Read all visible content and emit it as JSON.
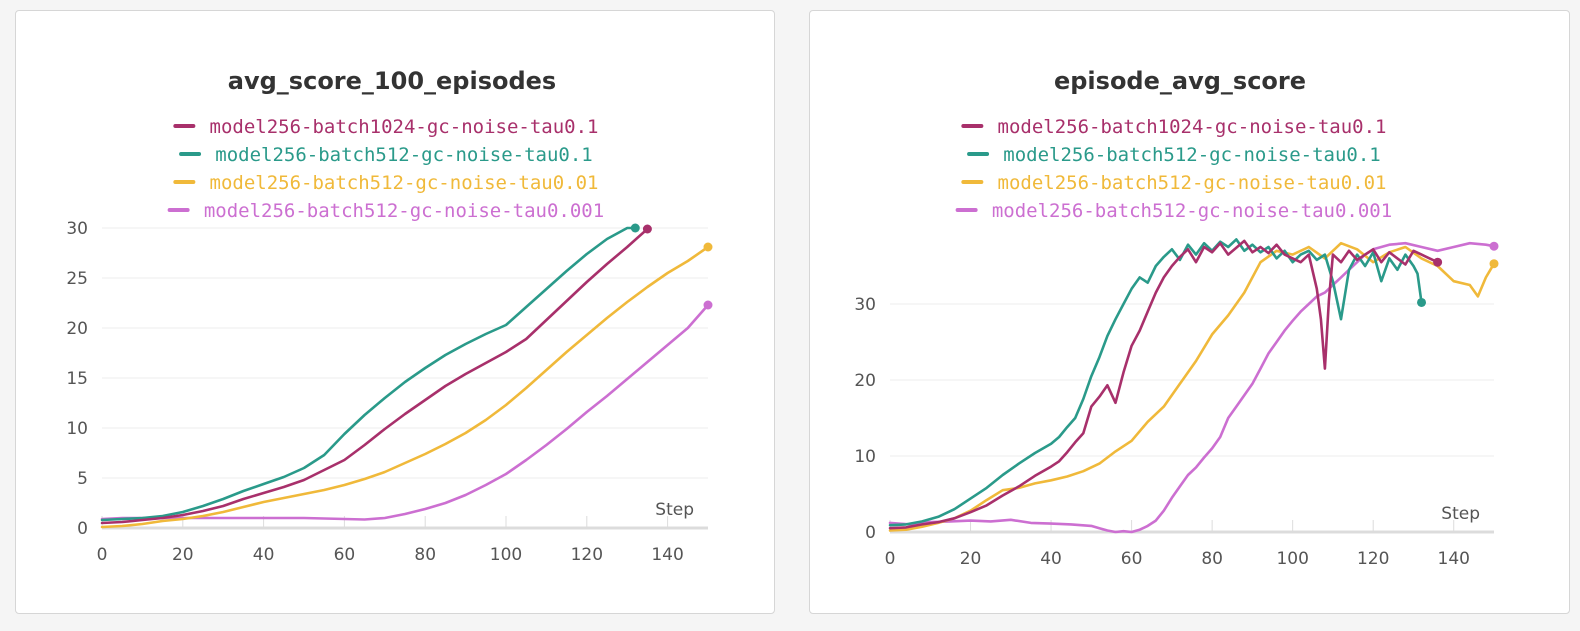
{
  "chart_data": [
    {
      "type": "line",
      "title": "avg_score_100_episodes",
      "xlabel": "Step",
      "ylabel": "",
      "xlim": [
        0,
        150
      ],
      "ylim": [
        0,
        30
      ],
      "x_ticks": [
        0,
        20,
        40,
        60,
        80,
        100,
        120,
        140
      ],
      "y_ticks": [
        0,
        5,
        10,
        15,
        20,
        25,
        30
      ],
      "grid": true,
      "legend_position": "top-center",
      "series": [
        {
          "name": "model256-batch1024-gc-noise-tau0.1",
          "color": "#a8306b",
          "x": [
            0,
            5,
            10,
            15,
            20,
            25,
            30,
            35,
            40,
            45,
            50,
            55,
            60,
            65,
            70,
            75,
            80,
            85,
            90,
            95,
            100,
            105,
            110,
            115,
            120,
            125,
            130,
            135
          ],
          "y": [
            0.5,
            0.6,
            0.8,
            1.0,
            1.3,
            1.7,
            2.2,
            2.9,
            3.5,
            4.1,
            4.8,
            5.8,
            6.8,
            8.3,
            9.9,
            11.4,
            12.8,
            14.2,
            15.4,
            16.5,
            17.6,
            18.9,
            20.8,
            22.7,
            24.6,
            26.4,
            28.1,
            29.9
          ],
          "end_marker": true
        },
        {
          "name": "model256-batch512-gc-noise-tau0.1",
          "color": "#2a9a8a",
          "x": [
            0,
            5,
            10,
            15,
            20,
            25,
            30,
            35,
            40,
            45,
            50,
            55,
            60,
            65,
            70,
            75,
            80,
            85,
            90,
            95,
            100,
            105,
            110,
            115,
            120,
            125,
            130,
            132
          ],
          "y": [
            0.8,
            0.9,
            1.0,
            1.2,
            1.6,
            2.2,
            2.9,
            3.7,
            4.4,
            5.1,
            6.0,
            7.3,
            9.4,
            11.3,
            13.0,
            14.6,
            16.0,
            17.3,
            18.4,
            19.4,
            20.3,
            22.1,
            23.9,
            25.7,
            27.4,
            28.9,
            30.0,
            30.0
          ],
          "end_marker": true
        },
        {
          "name": "model256-batch512-gc-noise-tau0.01",
          "color": "#f0b93a",
          "x": [
            0,
            5,
            10,
            15,
            20,
            25,
            30,
            35,
            40,
            45,
            50,
            55,
            60,
            65,
            70,
            75,
            80,
            85,
            90,
            95,
            100,
            105,
            110,
            115,
            120,
            125,
            130,
            135,
            140,
            145,
            150
          ],
          "y": [
            0.1,
            0.2,
            0.4,
            0.7,
            0.9,
            1.2,
            1.6,
            2.1,
            2.6,
            3.0,
            3.4,
            3.8,
            4.3,
            4.9,
            5.6,
            6.5,
            7.4,
            8.4,
            9.5,
            10.8,
            12.3,
            14.0,
            15.8,
            17.6,
            19.3,
            21.0,
            22.6,
            24.1,
            25.5,
            26.7,
            28.1
          ],
          "end_marker": true
        },
        {
          "name": "model256-batch512-gc-noise-tau0.001",
          "color": "#cc6fd1",
          "x": [
            0,
            5,
            10,
            15,
            20,
            25,
            30,
            35,
            40,
            45,
            50,
            55,
            60,
            65,
            70,
            75,
            80,
            85,
            90,
            95,
            100,
            105,
            110,
            115,
            120,
            125,
            130,
            135,
            140,
            145,
            150
          ],
          "y": [
            0.9,
            1.0,
            1.0,
            1.0,
            1.0,
            1.0,
            1.0,
            1.0,
            1.0,
            1.0,
            1.0,
            0.95,
            0.9,
            0.85,
            1.0,
            1.4,
            1.9,
            2.5,
            3.3,
            4.3,
            5.4,
            6.8,
            8.3,
            9.9,
            11.6,
            13.2,
            14.9,
            16.6,
            18.3,
            20.0,
            22.3
          ],
          "end_marker": true
        }
      ]
    },
    {
      "type": "line",
      "title": "episode_avg_score",
      "xlabel": "Step",
      "ylabel": "",
      "xlim": [
        0,
        150
      ],
      "ylim": [
        0,
        40
      ],
      "x_ticks": [
        0,
        20,
        40,
        60,
        80,
        100,
        120,
        140
      ],
      "y_ticks": [
        0,
        10,
        20,
        30
      ],
      "grid": true,
      "legend_position": "top-center",
      "series": [
        {
          "name": "model256-batch1024-gc-noise-tau0.1",
          "color": "#a8306b",
          "x": [
            0,
            4,
            8,
            12,
            16,
            20,
            24,
            28,
            32,
            36,
            40,
            42,
            44,
            46,
            48,
            50,
            52,
            54,
            56,
            58,
            60,
            62,
            64,
            66,
            68,
            70,
            72,
            74,
            76,
            78,
            80,
            82,
            84,
            86,
            88,
            90,
            92,
            94,
            96,
            98,
            100,
            102,
            104,
            106,
            107,
            108,
            109,
            110,
            112,
            114,
            116,
            118,
            120,
            122,
            124,
            126,
            128,
            130,
            132,
            134,
            136
          ],
          "y": [
            0.5,
            0.6,
            1.0,
            1.3,
            1.8,
            2.6,
            3.5,
            4.8,
            6.0,
            7.4,
            8.6,
            9.3,
            10.5,
            11.8,
            13.0,
            16.5,
            17.8,
            19.3,
            17.0,
            21.0,
            24.5,
            26.5,
            29.0,
            31.5,
            33.5,
            35.0,
            36.2,
            37.2,
            35.5,
            37.5,
            36.8,
            38.0,
            36.5,
            37.4,
            38.3,
            36.8,
            37.5,
            36.7,
            37.8,
            36.5,
            36.0,
            35.5,
            36.5,
            32.0,
            28.0,
            21.5,
            30.5,
            36.5,
            35.5,
            37.0,
            35.8,
            36.5,
            37.2,
            35.5,
            36.8,
            36.0,
            35.2,
            37.0,
            36.5,
            36.0,
            35.5
          ],
          "end_marker": true
        },
        {
          "name": "model256-batch512-gc-noise-tau0.1",
          "color": "#2a9a8a",
          "x": [
            0,
            4,
            8,
            12,
            16,
            20,
            24,
            28,
            32,
            36,
            40,
            42,
            44,
            46,
            48,
            50,
            52,
            54,
            56,
            58,
            60,
            62,
            64,
            66,
            68,
            70,
            72,
            74,
            76,
            78,
            80,
            82,
            84,
            86,
            88,
            90,
            92,
            94,
            96,
            98,
            100,
            102,
            104,
            106,
            108,
            110,
            112,
            114,
            116,
            118,
            120,
            122,
            124,
            126,
            128,
            130,
            131,
            132
          ],
          "y": [
            0.9,
            1.0,
            1.4,
            2.0,
            3.0,
            4.4,
            5.8,
            7.5,
            9.0,
            10.4,
            11.6,
            12.5,
            13.8,
            15.0,
            17.5,
            20.5,
            23.0,
            25.8,
            28.0,
            30.0,
            32.0,
            33.5,
            32.8,
            35.0,
            36.2,
            37.2,
            35.8,
            37.8,
            36.5,
            38.0,
            37.0,
            38.2,
            37.5,
            38.5,
            37.0,
            37.8,
            36.8,
            37.5,
            36.0,
            37.0,
            35.5,
            36.5,
            37.0,
            35.8,
            36.5,
            33.0,
            28.0,
            34.5,
            36.5,
            35.0,
            36.8,
            33.0,
            36.0,
            34.5,
            36.5,
            35.0,
            34.0,
            30.2
          ],
          "end_marker": true
        },
        {
          "name": "model256-batch512-gc-noise-tau0.01",
          "color": "#f0b93a",
          "x": [
            0,
            4,
            8,
            12,
            16,
            20,
            24,
            28,
            32,
            36,
            40,
            44,
            48,
            52,
            56,
            60,
            64,
            68,
            72,
            76,
            80,
            84,
            88,
            92,
            96,
            100,
            104,
            108,
            112,
            116,
            120,
            124,
            128,
            132,
            136,
            140,
            144,
            146,
            148,
            150
          ],
          "y": [
            0.2,
            0.3,
            0.7,
            1.2,
            1.8,
            2.8,
            4.2,
            5.5,
            5.8,
            6.4,
            6.8,
            7.3,
            8.0,
            9.0,
            10.6,
            12.0,
            14.5,
            16.5,
            19.5,
            22.5,
            26.0,
            28.5,
            31.5,
            35.5,
            37.0,
            36.5,
            37.5,
            36.0,
            38.0,
            37.2,
            35.5,
            36.8,
            37.5,
            36.0,
            35.0,
            33.0,
            32.5,
            31.0,
            33.5,
            35.3
          ],
          "end_marker": true
        },
        {
          "name": "model256-batch512-gc-noise-tau0.001",
          "color": "#cc6fd1",
          "x": [
            0,
            5,
            10,
            15,
            20,
            25,
            30,
            35,
            40,
            45,
            50,
            52,
            54,
            56,
            58,
            60,
            62,
            64,
            66,
            68,
            70,
            72,
            74,
            76,
            78,
            80,
            82,
            84,
            86,
            88,
            90,
            92,
            94,
            96,
            98,
            100,
            102,
            104,
            106,
            108,
            110,
            112,
            114,
            116,
            118,
            120,
            124,
            128,
            132,
            136,
            140,
            144,
            148,
            150
          ],
          "y": [
            1.2,
            1.0,
            1.3,
            1.4,
            1.5,
            1.4,
            1.6,
            1.2,
            1.1,
            1.0,
            0.8,
            0.5,
            0.2,
            0.0,
            0.1,
            0.0,
            0.3,
            0.8,
            1.5,
            2.8,
            4.5,
            6.0,
            7.5,
            8.5,
            9.8,
            11.0,
            12.5,
            15.0,
            16.5,
            18.0,
            19.5,
            21.5,
            23.5,
            25.0,
            26.5,
            27.8,
            29.0,
            30.0,
            31.0,
            31.5,
            32.5,
            33.5,
            34.5,
            35.5,
            36.5,
            37.2,
            37.8,
            38.0,
            37.5,
            37.0,
            37.5,
            38.0,
            37.8,
            37.6
          ],
          "end_marker": true
        }
      ]
    }
  ]
}
